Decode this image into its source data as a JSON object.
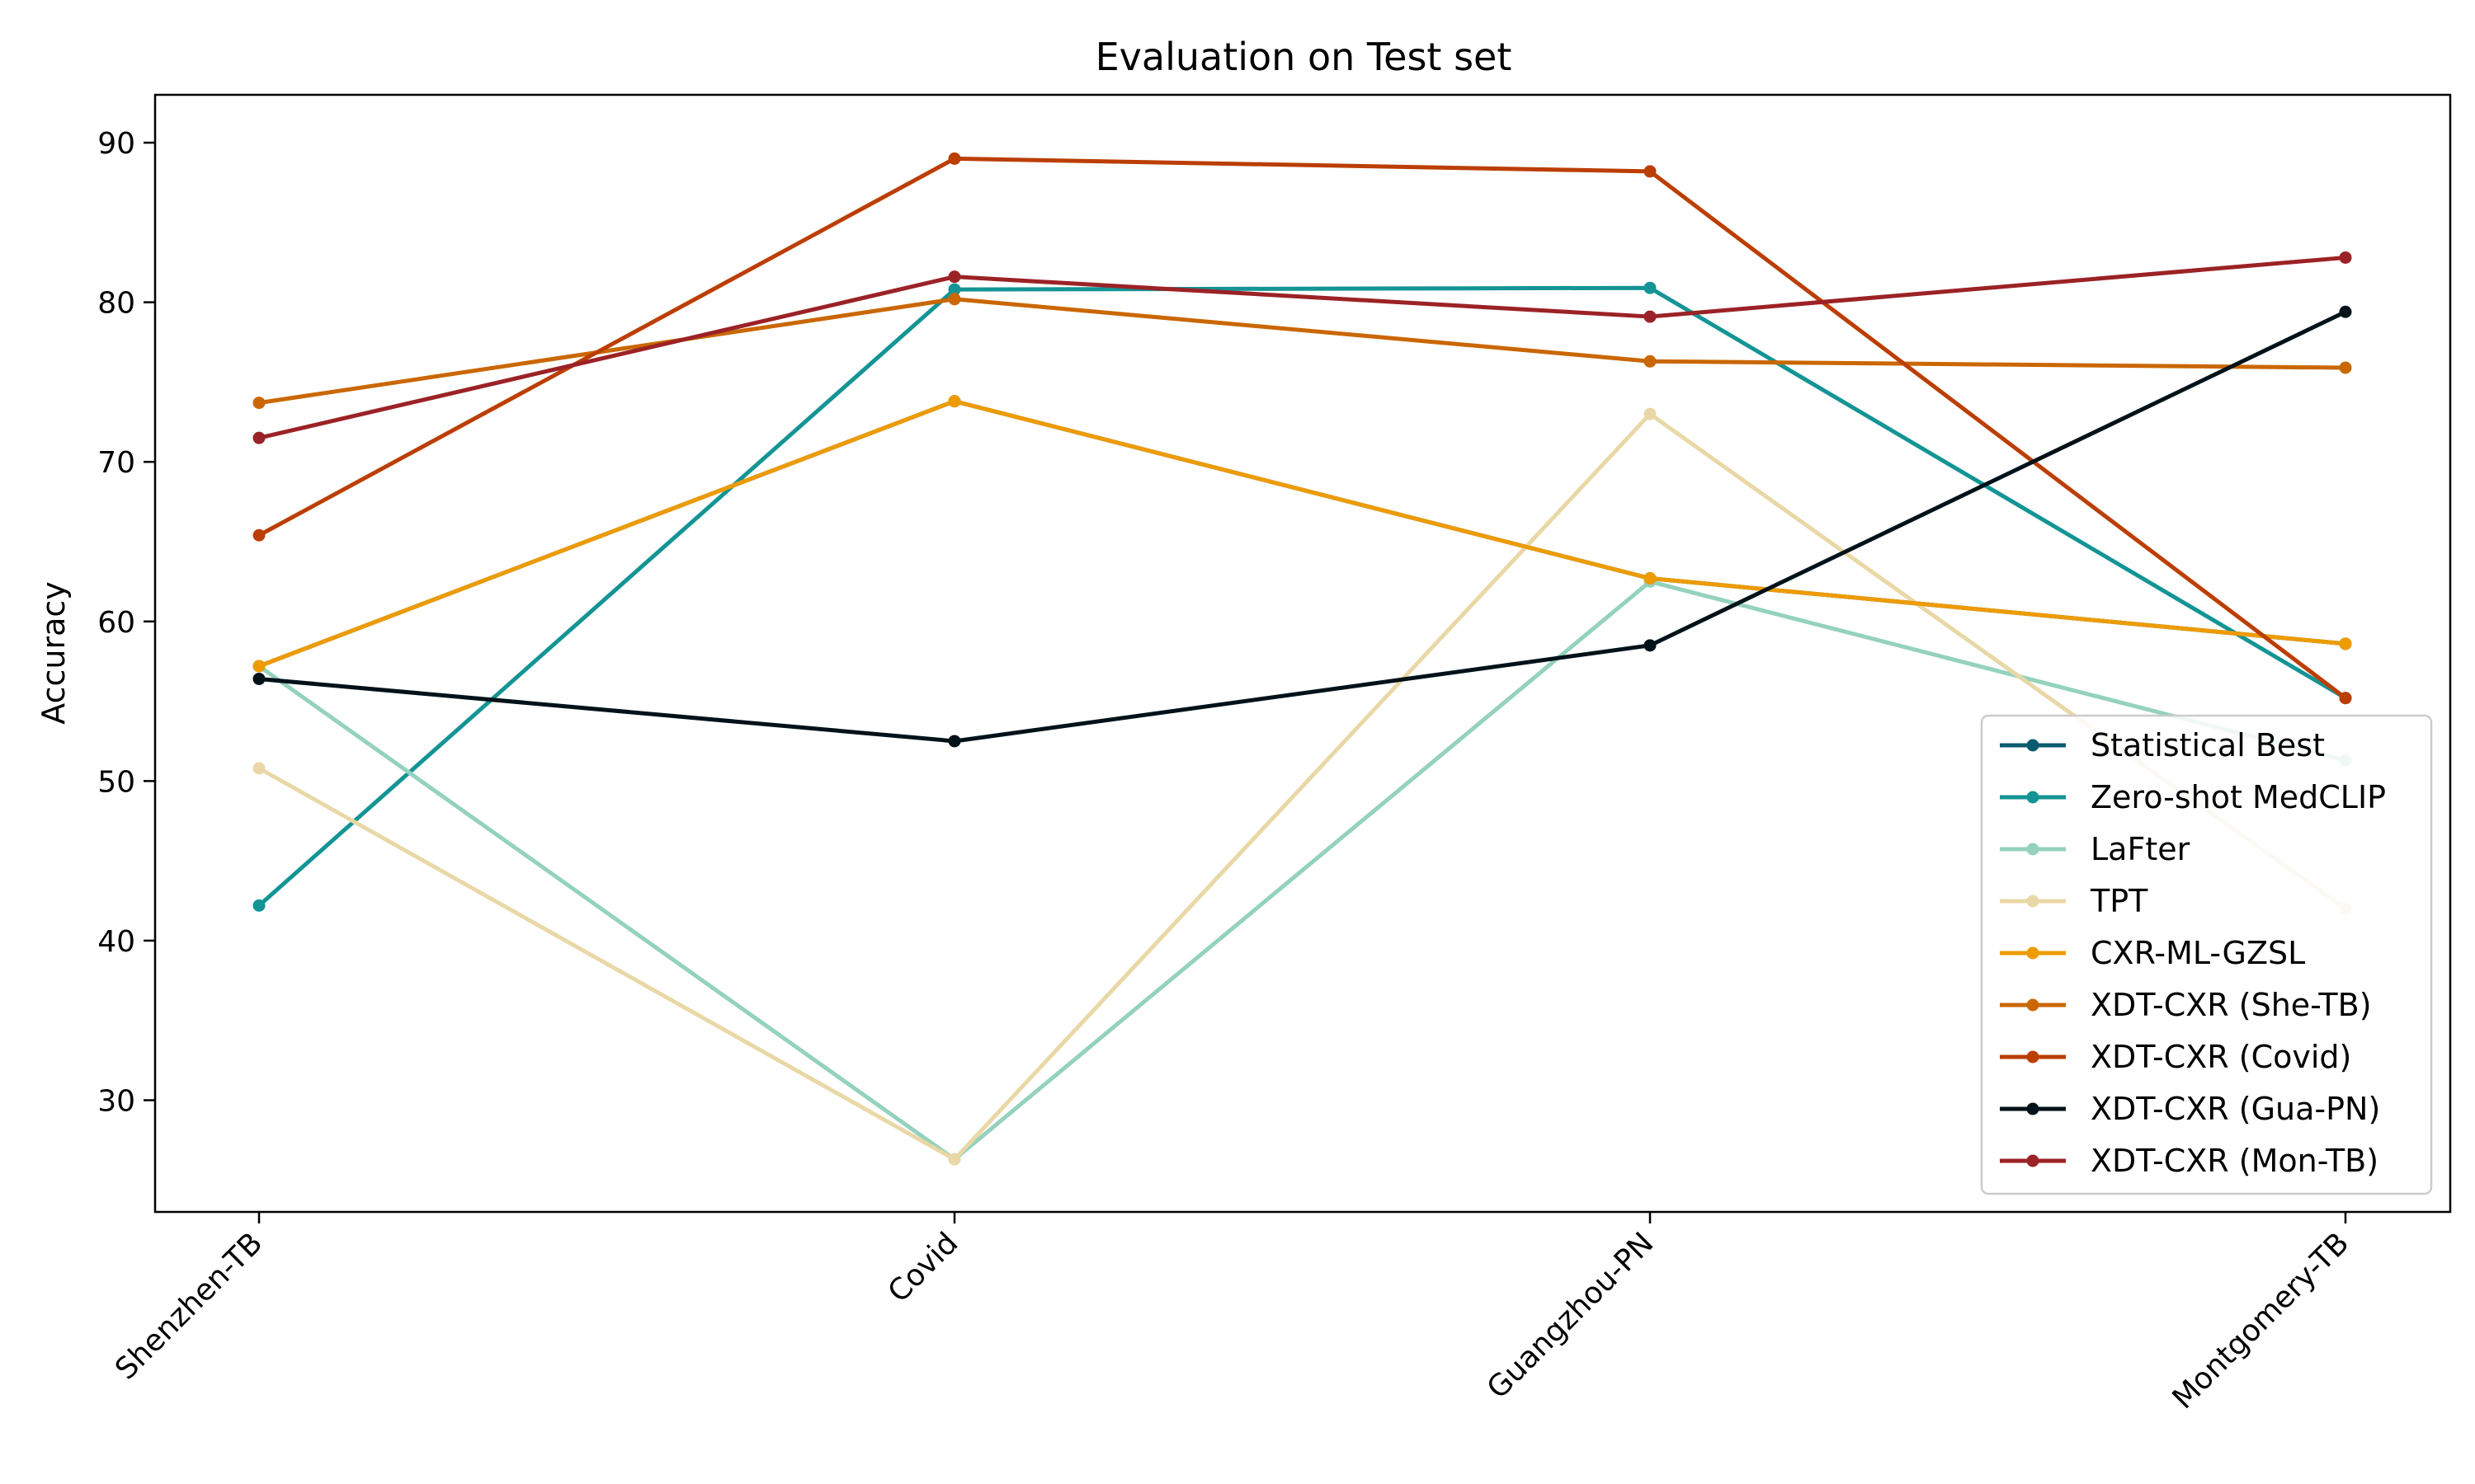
{
  "chart_data": {
    "type": "line",
    "title": "Evaluation on Test set",
    "xlabel": "",
    "ylabel": "Accuracy",
    "categories": [
      "Shenzhen-TB",
      "Covid",
      "Guangzhou-PN",
      "Montgomery-TB"
    ],
    "ylim": [
      23,
      93
    ],
    "yticks": [
      30,
      40,
      50,
      60,
      70,
      80,
      90
    ],
    "grid": false,
    "legend_position": "lower-right",
    "series": [
      {
        "name": "Statistical Best",
        "color": "#0b5b6e",
        "values": [
          57.2,
          73.8,
          62.7,
          58.6
        ]
      },
      {
        "name": "Zero-shot MedCLIP",
        "color": "#149494",
        "values": [
          42.2,
          80.8,
          80.9,
          55.2
        ]
      },
      {
        "name": "LaFter",
        "color": "#94d2bd",
        "values": [
          57.2,
          26.3,
          62.5,
          51.3
        ]
      },
      {
        "name": "TPT",
        "color": "#e9d8a6",
        "values": [
          50.8,
          26.3,
          73.0,
          42.0
        ]
      },
      {
        "name": "CXR-ML-GZSL",
        "color": "#ee9b00",
        "values": [
          57.2,
          73.8,
          62.7,
          58.6
        ]
      },
      {
        "name": "XDT-CXR (She-TB)",
        "color": "#ca6702",
        "values": [
          73.7,
          80.2,
          76.3,
          75.9
        ]
      },
      {
        "name": "XDT-CXR (Covid)",
        "color": "#bb3e03",
        "values": [
          65.4,
          89.0,
          88.2,
          55.2
        ]
      },
      {
        "name": "XDT-CXR (Gua-PN)",
        "color": "#001219",
        "values": [
          56.4,
          52.5,
          58.5,
          79.4
        ]
      },
      {
        "name": "XDT-CXR (Mon-TB)",
        "color": "#9b2226",
        "values": [
          71.5,
          81.6,
          79.1,
          82.8
        ]
      }
    ]
  }
}
